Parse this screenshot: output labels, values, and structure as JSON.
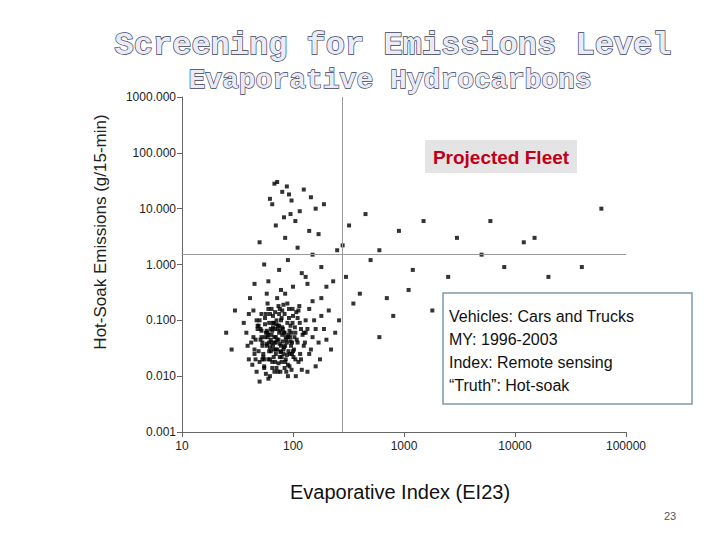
{
  "chart_data": {
    "type": "scatter",
    "title": "Screening for Emissions Level",
    "subtitle": "Evaporative Hydrocarbons",
    "xlabel": "Evaporative Index (EI23)",
    "ylabel": "Hot-Soak Emissions (g/15-min)",
    "label_box": "Projected Fleet",
    "info_box": [
      "Vehicles: Cars and Trucks",
      "MY: 1996-2003",
      "Index: Remote sensing",
      "“Truth”: Hot-soak"
    ],
    "page_number": "23",
    "log": true,
    "grid": false,
    "marker": "square",
    "color": "#000000",
    "xlim": [
      10,
      100000
    ],
    "ylim": [
      0.001,
      1000
    ],
    "xticks": [
      10,
      100,
      1000,
      10000,
      100000
    ],
    "yticks": [
      {
        "value": 0.001,
        "label": "0.001"
      },
      {
        "value": 0.01,
        "label": "0.010"
      },
      {
        "value": 0.1,
        "label": "0.100"
      },
      {
        "value": 1,
        "label": "1.000"
      },
      {
        "value": 10,
        "label": "10.000"
      },
      {
        "value": 100,
        "label": "100.000"
      },
      {
        "value": 1000,
        "label": "1000.000"
      }
    ],
    "reference_lines": {
      "x": 280,
      "y": 1.5
    },
    "x": [
      45,
      52,
      60,
      68,
      75,
      82,
      90,
      98,
      110,
      125,
      48,
      55,
      63,
      70,
      78,
      85,
      95,
      105,
      118,
      135,
      42,
      50,
      58,
      66,
      72,
      80,
      88,
      100,
      115,
      150,
      40,
      47,
      54,
      62,
      70,
      77,
      86,
      93,
      102,
      140,
      56,
      61,
      65,
      73,
      79,
      84,
      92,
      108,
      122,
      170,
      38,
      44,
      51,
      59,
      67,
      74,
      81,
      89,
      97,
      112,
      46,
      53,
      57,
      64,
      69,
      76,
      83,
      91,
      104,
      130,
      50,
      55,
      60,
      67,
      71,
      78,
      87,
      94,
      106,
      160,
      41,
      49,
      58,
      63,
      72,
      80,
      85,
      96,
      114,
      190,
      43,
      52,
      61,
      66,
      74,
      79,
      88,
      99,
      120,
      145,
      54,
      59,
      62,
      68,
      73,
      82,
      90,
      101,
      128,
      175,
      47,
      51,
      57,
      64,
      70,
      75,
      84,
      93,
      110,
      200,
      39,
      45,
      53,
      60,
      65,
      71,
      77,
      86,
      98,
      125,
      55,
      58,
      63,
      69,
      75,
      81,
      89,
      97,
      107,
      155,
      44,
      48,
      56,
      62,
      67,
      72,
      79,
      92,
      116,
      135,
      36,
      50,
      60,
      66,
      70,
      76,
      83,
      95,
      103,
      180,
      58,
      61,
      64,
      68,
      73,
      78,
      85,
      90,
      112,
      220,
      46,
      52,
      57,
      65,
      71,
      77,
      82,
      100,
      130,
      160,
      53,
      56,
      62,
      66,
      74,
      80,
      87,
      94,
      105,
      140,
      40,
      49,
      59,
      69,
      76,
      84,
      91,
      99,
      118,
      240,
      60,
      75,
      90,
      110,
      130,
      85,
      70,
      100,
      150,
      95,
      65,
      80,
      120,
      140,
      55,
      105,
      180,
      72,
      88,
      160,
      50,
      62,
      78,
      92,
      115,
      135,
      170,
      200,
      250,
      300,
      68,
      83,
      97,
      125,
      145,
      190,
      230,
      280,
      320,
      400,
      500,
      700,
      900,
      1200,
      1500,
      1800,
      3000,
      5000,
      8000,
      12000,
      20000,
      40000,
      60000,
      350,
      450,
      600,
      800,
      1100,
      45,
      30,
      2500,
      6000,
      15000,
      25,
      28,
      180,
      210,
      260,
      150,
      600
    ],
    "values": [
      0.03,
      0.05,
      0.02,
      0.04,
      0.06,
      0.03,
      0.05,
      0.025,
      0.04,
      0.035,
      0.08,
      0.015,
      0.07,
      0.025,
      0.1,
      0.018,
      0.08,
      0.06,
      0.02,
      0.07,
      0.04,
      0.1,
      0.035,
      0.12,
      0.03,
      0.15,
      0.04,
      0.12,
      0.09,
      0.05,
      0.02,
      0.012,
      0.025,
      0.01,
      0.05,
      0.012,
      0.02,
      0.015,
      0.03,
      0.025,
      0.05,
      0.09,
      0.018,
      0.08,
      0.022,
      0.06,
      0.11,
      0.045,
      0.055,
      0.04,
      0.06,
      0.15,
      0.07,
      0.2,
      0.09,
      0.18,
      0.07,
      0.2,
      0.06,
      0.15,
      0.045,
      0.035,
      0.13,
      0.055,
      0.14,
      0.038,
      0.033,
      0.028,
      0.075,
      0.1,
      0.008,
      0.02,
      0.009,
      0.03,
      0.014,
      0.035,
      0.012,
      0.05,
      0.01,
      0.015,
      0.25,
      0.028,
      0.3,
      0.045,
      0.25,
      0.055,
      0.3,
      0.035,
      0.18,
      0.07,
      0.016,
      0.065,
      0.04,
      0.09,
      0.017,
      0.11,
      0.024,
      0.09,
      0.013,
      0.03,
      0.022,
      0.06,
      0.13,
      0.012,
      0.07,
      0.025,
      0.016,
      0.022,
      0.04,
      0.02,
      0.1,
      0.045,
      0.011,
      0.16,
      0.04,
      0.08,
      0.13,
      0.065,
      0.11,
      0.045,
      0.035,
      0.025,
      0.02,
      0.055,
      0.065,
      0.1,
      0.027,
      0.05,
      0.04,
      0.06,
      0.014,
      0.038,
      0.028,
      0.018,
      0.13,
      0.042,
      0.09,
      0.013,
      0.14,
      0.1,
      0.05,
      0.07,
      0.085,
      0.033,
      0.022,
      0.045,
      0.018,
      0.16,
      0.025,
      0.012,
      0.09,
      0.018,
      0.16,
      0.075,
      0.03,
      0.022,
      0.06,
      0.042,
      0.05,
      0.12,
      0.065,
      0.028,
      0.04,
      0.05,
      0.012,
      0.028,
      0.035,
      0.01,
      0.018,
      0.03,
      0.02,
      0.13,
      0.06,
      0.014,
      0.085,
      0.065,
      0.19,
      0.028,
      0.06,
      0.07,
      0.04,
      0.11,
      0.02,
      0.035,
      0.045,
      0.075,
      0.045,
      0.025,
      0.02,
      0.16,
      0.13,
      0.08,
      0.05,
      0.07,
      0.16,
      0.014,
      0.055,
      0.16,
      0.07,
      0.06,
      0.5,
      0.8,
      1.2,
      2,
      0.6,
      3,
      5,
      0.4,
      1.5,
      8,
      12,
      20,
      0.7,
      4,
      1,
      6,
      0.9,
      30,
      25,
      10,
      2.5,
      15,
      0.35,
      18,
      9,
      0.45,
      3.5,
      0.4,
      1.8,
      0.6,
      28,
      7,
      14,
      22,
      16,
      12,
      0.5,
      2.2,
      5,
      0.3,
      1.2,
      0.25,
      4,
      0.8,
      6,
      0.15,
      3,
      1.5,
      0.9,
      2.5,
      0.6,
      0.9,
      10,
      0.2,
      8,
      1.8,
      0.12,
      0.35,
      0.45,
      0.15,
      0.6,
      6,
      3,
      0.06,
      0.03,
      0.25,
      0.15,
      0.1,
      0.22,
      0.05
    ]
  }
}
